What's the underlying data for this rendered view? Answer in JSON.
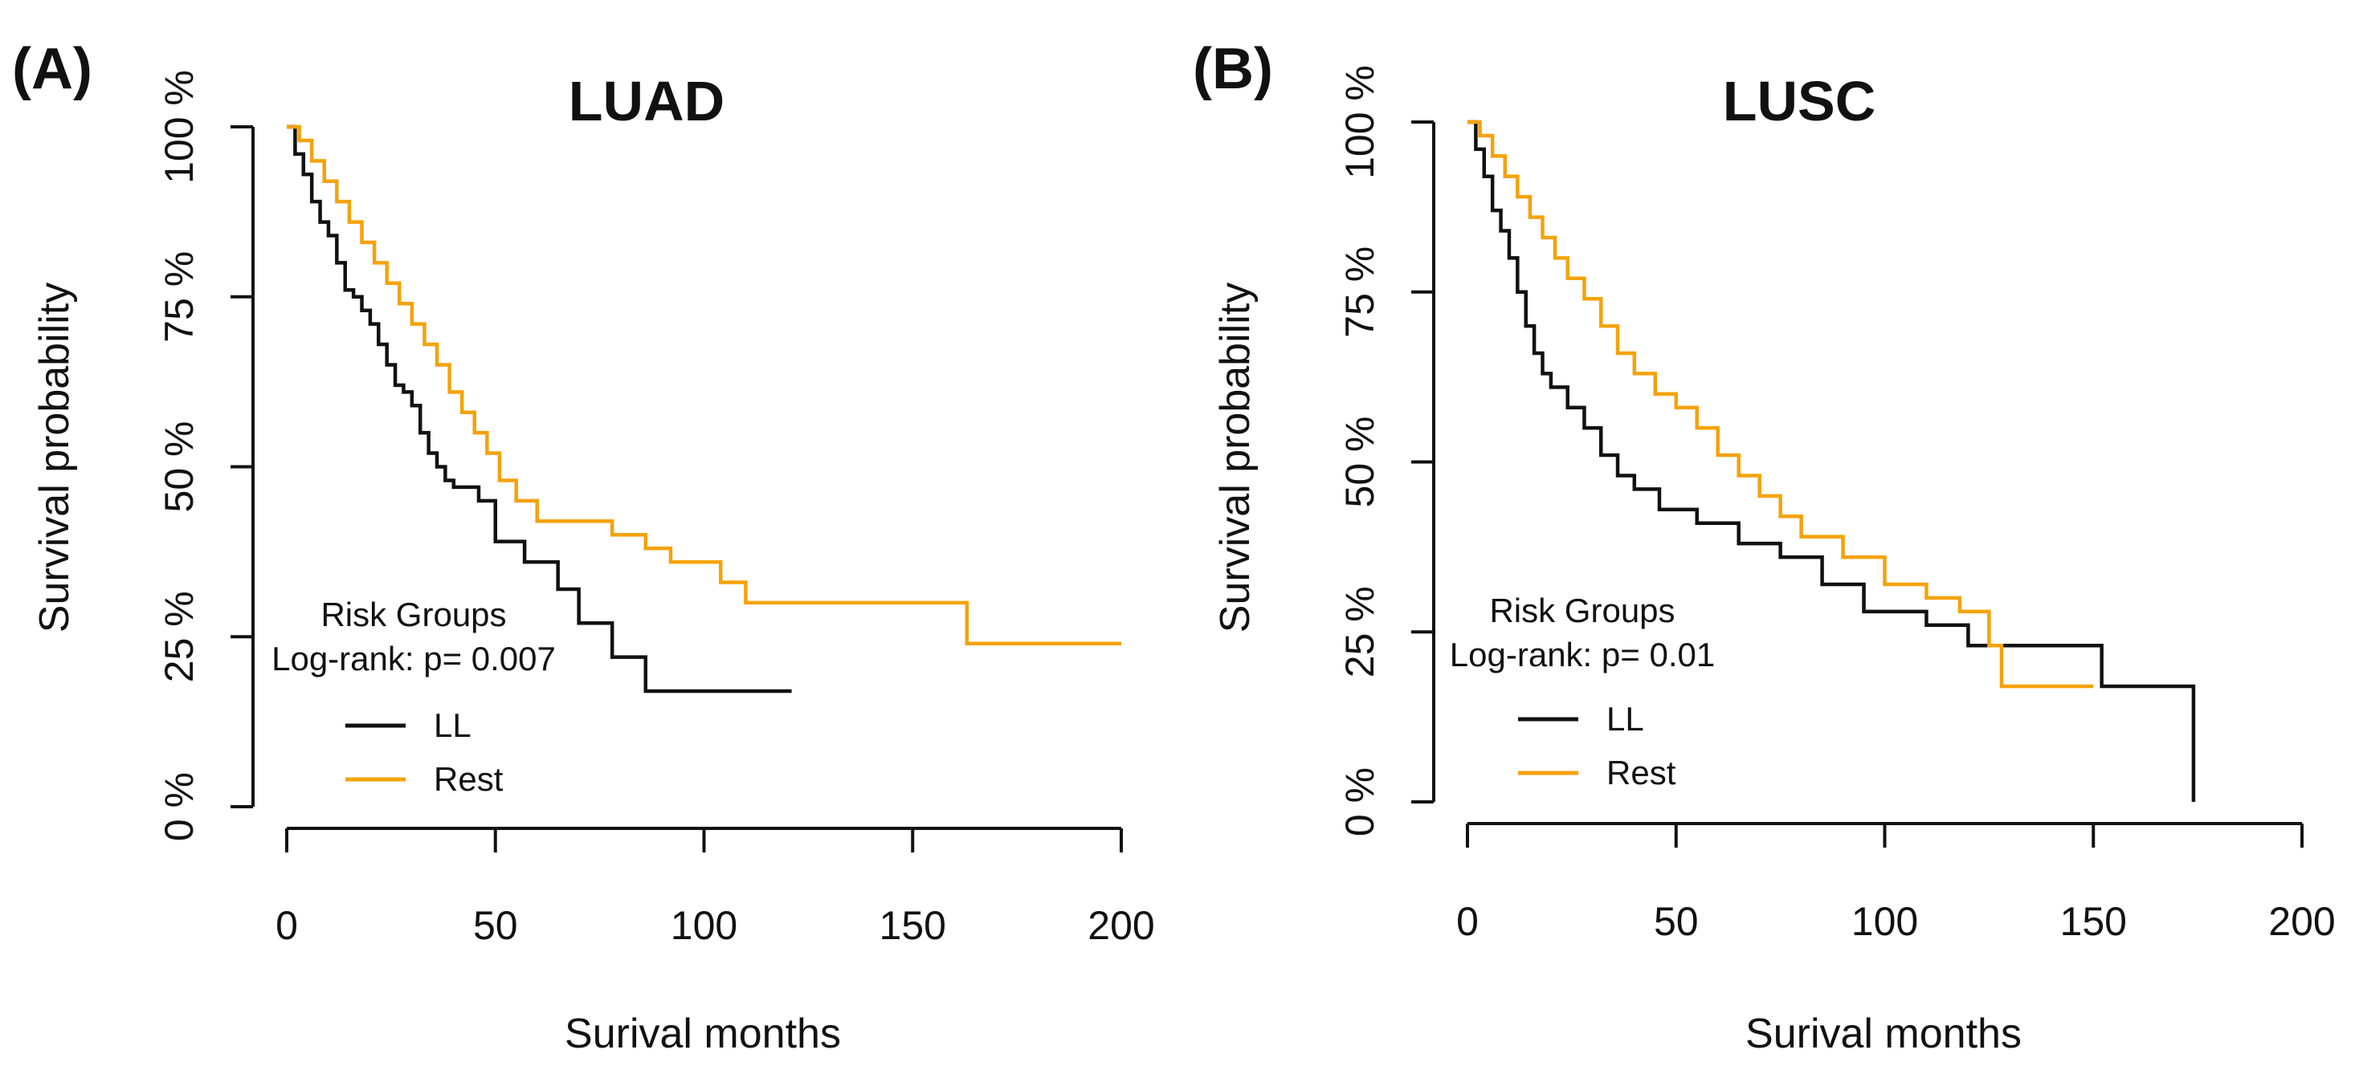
{
  "chart_data": [
    {
      "type": "line",
      "panel_label": "(A)",
      "title": "LUAD",
      "xlabel": "Surival months",
      "ylabel": "Survival probability",
      "xlim": [
        0,
        200
      ],
      "ylim": [
        0,
        100
      ],
      "x_ticks": [
        0,
        50,
        100,
        150,
        200
      ],
      "x_tick_labels": [
        "0",
        "50",
        "100",
        "150",
        "200"
      ],
      "y_ticks": [
        0,
        25,
        50,
        75,
        100
      ],
      "y_tick_labels": [
        "0 %",
        "25 %",
        "50 %",
        "75 %",
        "100 %"
      ],
      "legend_title": "Risk Groups",
      "annotation": "Log-rank: p= 0.007",
      "series": [
        {
          "name": "LL",
          "color": "#111111",
          "x": [
            0,
            2,
            4,
            6,
            8,
            10,
            12,
            14,
            16,
            18,
            20,
            22,
            24,
            26,
            28,
            30,
            32,
            34,
            36,
            38,
            40,
            43,
            46,
            50,
            57,
            65,
            70,
            78,
            86,
            121
          ],
          "y": [
            100,
            96,
            93,
            89,
            86,
            84,
            80,
            76,
            75,
            73,
            71,
            68,
            65,
            62,
            61,
            59,
            55,
            52,
            50,
            48,
            47,
            47,
            45,
            39,
            36,
            32,
            27,
            22,
            17,
            17
          ]
        },
        {
          "name": "Rest",
          "color": "#F5A20A",
          "x": [
            0,
            3,
            6,
            9,
            12,
            15,
            18,
            21,
            24,
            27,
            30,
            33,
            36,
            39,
            42,
            45,
            48,
            51,
            55,
            60,
            66,
            72,
            78,
            86,
            92,
            104,
            110,
            120,
            130,
            163,
            200
          ],
          "y": [
            100,
            98,
            95,
            92,
            89,
            86,
            83,
            80,
            77,
            74,
            71,
            68,
            65,
            61,
            58,
            55,
            52,
            48,
            45,
            42,
            42,
            42,
            40,
            38,
            36,
            33,
            30,
            30,
            30,
            24,
            24
          ]
        }
      ]
    },
    {
      "type": "line",
      "panel_label": "(B)",
      "title": "LUSC",
      "xlabel": "Surival months",
      "ylabel": "Survival probability",
      "xlim": [
        0,
        200
      ],
      "ylim": [
        0,
        100
      ],
      "x_ticks": [
        0,
        50,
        100,
        150,
        200
      ],
      "x_tick_labels": [
        "0",
        "50",
        "100",
        "150",
        "200"
      ],
      "y_ticks": [
        0,
        25,
        50,
        75,
        100
      ],
      "y_tick_labels": [
        "0 %",
        "25 %",
        "50 %",
        "75 %",
        "100 %"
      ],
      "legend_title": "Risk Groups",
      "annotation": "Log-rank: p= 0.01",
      "series": [
        {
          "name": "LL",
          "color": "#111111",
          "x": [
            0,
            2,
            4,
            6,
            8,
            10,
            12,
            14,
            16,
            18,
            20,
            24,
            28,
            32,
            36,
            40,
            46,
            55,
            65,
            75,
            85,
            95,
            110,
            120,
            130,
            150,
            152,
            173,
            174
          ],
          "y": [
            100,
            96,
            92,
            87,
            84,
            80,
            75,
            70,
            66,
            63,
            61,
            58,
            55,
            51,
            48,
            46,
            43,
            41,
            38,
            36,
            32,
            28,
            26,
            23,
            23,
            23,
            17,
            17,
            0
          ]
        },
        {
          "name": "Rest",
          "color": "#F5A20A",
          "x": [
            0,
            3,
            6,
            9,
            12,
            15,
            18,
            21,
            24,
            28,
            32,
            36,
            40,
            45,
            50,
            55,
            60,
            65,
            70,
            75,
            80,
            90,
            100,
            110,
            118,
            125,
            128,
            140,
            150
          ],
          "y": [
            100,
            98,
            95,
            92,
            89,
            86,
            83,
            80,
            77,
            74,
            70,
            66,
            63,
            60,
            58,
            55,
            51,
            48,
            45,
            42,
            39,
            36,
            32,
            30,
            28,
            23,
            17,
            17,
            17
          ]
        }
      ]
    }
  ]
}
